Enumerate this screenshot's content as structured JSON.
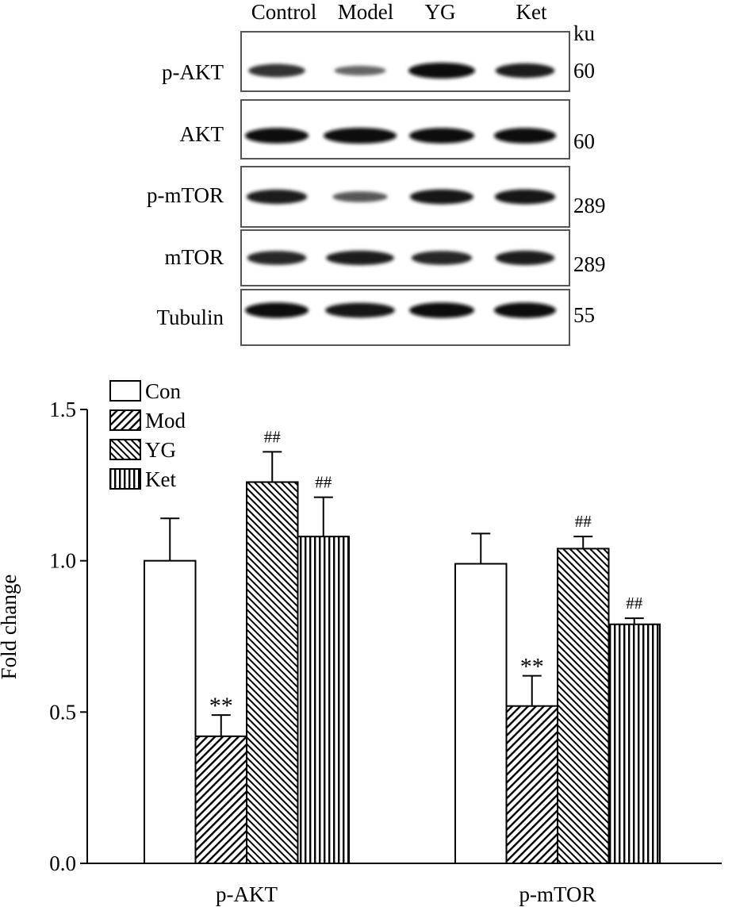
{
  "blot": {
    "lanes": [
      "Control",
      "Model",
      "YG",
      "Ket"
    ],
    "unit_label": "ku",
    "rows": [
      {
        "label": "p-AKT",
        "mw": "60",
        "intensities": [
          0.72,
          0.35,
          1.0,
          0.85
        ]
      },
      {
        "label": "AKT",
        "mw": "60",
        "intensities": [
          0.95,
          1.0,
          0.95,
          0.95
        ]
      },
      {
        "label": "p-mTOR",
        "mw": "289",
        "intensities": [
          0.85,
          0.45,
          0.9,
          0.9
        ]
      },
      {
        "label": "mTOR",
        "mw": "289",
        "intensities": [
          0.8,
          0.85,
          0.8,
          0.85
        ]
      },
      {
        "label": "Tubulin",
        "mw": "55",
        "intensities": [
          0.95,
          0.9,
          0.95,
          0.95
        ]
      }
    ]
  },
  "chart_data": {
    "type": "bar",
    "categories": [
      "p-AKT",
      "p-mTOR"
    ],
    "ylabel": "Fold change",
    "ylim": [
      0,
      1.5
    ],
    "yticks": [
      "0.0",
      "0.5",
      "1.0",
      "1.5"
    ],
    "legend_position": "top-left",
    "series": [
      {
        "name": "Con",
        "pattern": "open",
        "values": [
          1.0,
          0.99
        ],
        "errors": [
          0.14,
          0.1
        ],
        "marks": [
          "",
          ""
        ]
      },
      {
        "name": "Mod",
        "pattern": "diag-right",
        "values": [
          0.42,
          0.52
        ],
        "errors": [
          0.07,
          0.1
        ],
        "marks": [
          "**",
          "**"
        ]
      },
      {
        "name": "YG",
        "pattern": "diag-left",
        "values": [
          1.26,
          1.04
        ],
        "errors": [
          0.1,
          0.04
        ],
        "marks": [
          "##",
          "##"
        ]
      },
      {
        "name": "Ket",
        "pattern": "vertical",
        "values": [
          1.08,
          0.79
        ],
        "errors": [
          0.13,
          0.02
        ],
        "marks": [
          "##",
          "##"
        ]
      }
    ]
  }
}
